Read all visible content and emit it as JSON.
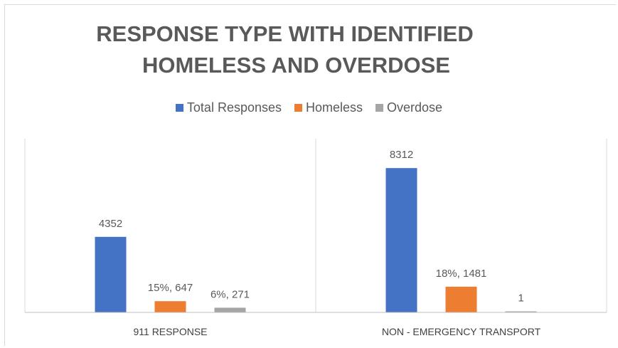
{
  "chart_data": {
    "type": "bar",
    "title_line1": "RESPONSE TYPE WITH IDENTIFIED",
    "title_line2": "HOMELESS AND OVERDOSE",
    "categories": [
      "911 RESPONSE",
      "NON  - EMERGENCY TRANSPORT"
    ],
    "series": [
      {
        "name": "Total Responses",
        "color": "#4472C4",
        "values": [
          4352,
          8312
        ],
        "labels": [
          "4352",
          "8312"
        ]
      },
      {
        "name": "Homeless",
        "color": "#ED7D31",
        "values": [
          647,
          1481
        ],
        "labels": [
          "15%, 647",
          "18%, 1481"
        ]
      },
      {
        "name": "Overdose",
        "color": "#A5A5A5",
        "values": [
          271,
          1
        ],
        "labels": [
          "6%, 271",
          "1"
        ]
      }
    ],
    "ylim": [
      0,
      10000
    ],
    "legend_position": "top",
    "grid": false
  }
}
